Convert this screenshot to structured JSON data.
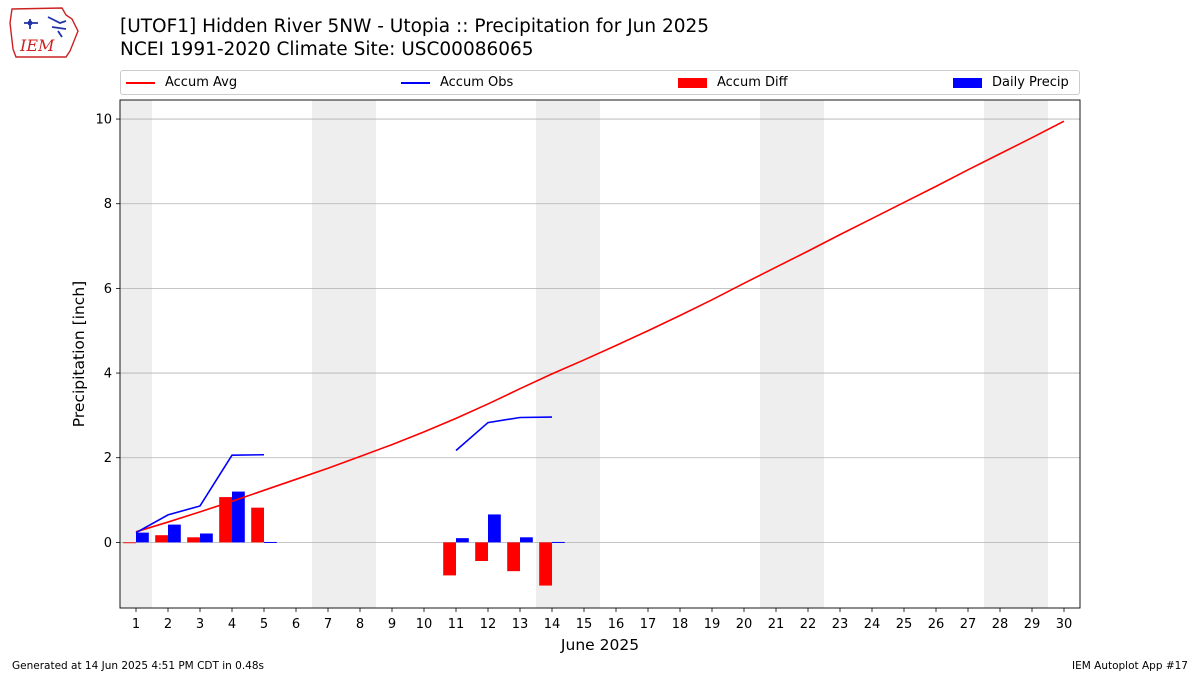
{
  "header": {
    "title_line1": "[UTOF1] Hidden River 5NW - Utopia :: Precipitation for Jun 2025",
    "title_line2": "NCEI 1991-2020 Climate Site: USC00086065",
    "logo_text": "IEM"
  },
  "legend": {
    "avg": "Accum Avg",
    "obs": "Accum Obs",
    "diff": "Accum Diff",
    "daily": "Daily Precip"
  },
  "footer": {
    "generated": "Generated at 14 Jun 2025 4:51 PM CDT in 0.48s",
    "app": "IEM Autoplot App #17"
  },
  "colors": {
    "avg": "#ff0000",
    "obs": "#0000ff",
    "diff": "#ff0000",
    "daily": "#0000ff",
    "weekend": "#eeeeee",
    "grid": "#b0b0b0"
  },
  "chart_data": {
    "type": "bar+line",
    "xlabel": "June 2025",
    "ylabel": "Precipitation [inch]",
    "xlim": [
      0.5,
      30.5
    ],
    "ylim": [
      -1.55,
      10.45
    ],
    "yticks": [
      0,
      2,
      4,
      6,
      8,
      10
    ],
    "days": [
      1,
      2,
      3,
      4,
      5,
      6,
      7,
      8,
      9,
      10,
      11,
      12,
      13,
      14,
      15,
      16,
      17,
      18,
      19,
      20,
      21,
      22,
      23,
      24,
      25,
      26,
      27,
      28,
      29,
      30
    ],
    "weekend_spans": [
      [
        0.5,
        1.5
      ],
      [
        6.5,
        8.5
      ],
      [
        13.5,
        15.5
      ],
      [
        20.5,
        22.5
      ],
      [
        27.5,
        29.5
      ]
    ],
    "accum_avg": {
      "days": [
        1,
        2,
        3,
        4,
        5,
        6,
        7,
        8,
        9,
        10,
        11,
        12,
        13,
        14,
        15,
        16,
        17,
        18,
        19,
        20,
        21,
        22,
        23,
        24,
        25,
        26,
        27,
        28,
        29,
        30
      ],
      "values": [
        0.25,
        0.48,
        0.72,
        0.97,
        1.23,
        1.49,
        1.75,
        2.03,
        2.31,
        2.61,
        2.93,
        3.27,
        3.63,
        3.98,
        4.31,
        4.65,
        5.0,
        5.36,
        5.73,
        6.12,
        6.5,
        6.88,
        7.27,
        7.65,
        8.03,
        8.41,
        8.8,
        9.18,
        9.56,
        9.95
      ]
    },
    "accum_obs": [
      {
        "days": [
          1,
          2,
          3,
          4,
          5
        ],
        "values": [
          0.23,
          0.65,
          0.86,
          2.06,
          2.07
        ]
      },
      {
        "days": [
          11,
          12,
          13,
          14
        ],
        "values": [
          2.17,
          2.83,
          2.95,
          2.96
        ]
      }
    ],
    "accum_diff": {
      "days": [
        1,
        2,
        3,
        4,
        5,
        11,
        12,
        13,
        14
      ],
      "values": [
        -0.02,
        0.17,
        0.12,
        1.07,
        0.82,
        -0.78,
        -0.44,
        -0.68,
        -1.02
      ]
    },
    "daily_precip": {
      "days": [
        1,
        2,
        3,
        4,
        5,
        11,
        12,
        13,
        14
      ],
      "values": [
        0.23,
        0.42,
        0.21,
        1.2,
        0.01,
        0.1,
        0.66,
        0.12,
        0.01
      ]
    }
  }
}
